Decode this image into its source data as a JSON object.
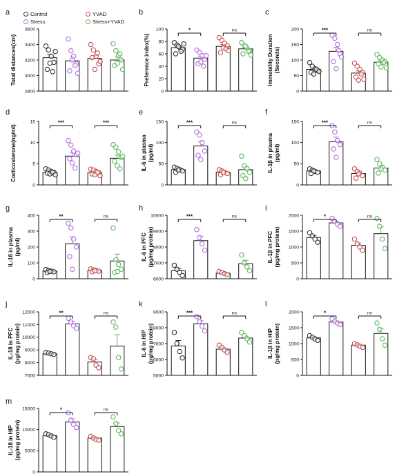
{
  "legend": [
    {
      "label": "Control",
      "color": "#333333"
    },
    {
      "label": "YVAD",
      "color": "#c0504d"
    },
    {
      "label": "Stress",
      "color": "#b46ee0"
    },
    {
      "label": "Stress+YVAD",
      "color": "#5cb85c"
    }
  ],
  "group_colors": [
    "#333333",
    "#b46ee0",
    "#c0504d",
    "#5cb85c"
  ],
  "chart_data": [
    {
      "panel": "a",
      "type": "bar",
      "ylabel": "Total distances(cm)",
      "ylim": [
        2800,
        3600
      ],
      "yticks": [
        2800,
        3000,
        3200,
        3400,
        3600
      ],
      "groups": [
        "Control",
        "Stress",
        "YVAD",
        "Stress+YVAD"
      ],
      "means": [
        3230,
        3190,
        3220,
        3200
      ],
      "points": [
        [
          3380,
          3330,
          3250,
          3170,
          3080,
          3160,
          3050,
          3310
        ],
        [
          3470,
          3320,
          3250,
          3150,
          3060,
          3200,
          3130,
          3030
        ],
        [
          3400,
          3330,
          3250,
          3150,
          3230,
          3080,
          3290,
          3180
        ],
        [
          3410,
          3320,
          3260,
          3200,
          3130,
          3160,
          3280,
          3080
        ]
      ],
      "comparisons": []
    },
    {
      "panel": "b",
      "type": "bar",
      "ylabel": "Preference index(%)",
      "ylim": [
        0,
        100
      ],
      "yticks": [
        0,
        20,
        40,
        60,
        80,
        100
      ],
      "groups": [
        "Control",
        "Stress",
        "YVAD",
        "Stress+YVAD"
      ],
      "means": [
        70,
        53,
        72,
        68
      ],
      "points": [
        [
          78,
          74,
          70,
          67,
          60,
          72,
          64,
          76
        ],
        [
          66,
          62,
          57,
          51,
          44,
          47,
          40,
          57
        ],
        [
          86,
          82,
          77,
          73,
          62,
          70,
          68,
          65
        ],
        [
          78,
          73,
          69,
          65,
          60,
          72,
          64,
          58
        ]
      ],
      "comparisons": [
        {
          "from": 0,
          "to": 1,
          "label": "*"
        },
        {
          "from": 2,
          "to": 3,
          "label": "ns"
        }
      ]
    },
    {
      "panel": "c",
      "type": "bar",
      "ylabel": "Immobility Duration (Seconds)",
      "ylim": [
        0,
        200
      ],
      "yticks": [
        0,
        50,
        100,
        150,
        200
      ],
      "groups": [
        "Control",
        "Stress",
        "YVAD",
        "Stress+YVAD"
      ],
      "means": [
        70,
        128,
        58,
        93
      ],
      "points": [
        [
          92,
          80,
          72,
          66,
          60,
          55,
          70,
          63
        ],
        [
          180,
          170,
          150,
          120,
          95,
          72,
          130,
          110
        ],
        [
          90,
          80,
          70,
          60,
          45,
          35,
          55,
          38
        ],
        [
          118,
          108,
          100,
          95,
          88,
          78,
          92,
          75
        ]
      ],
      "comparisons": [
        {
          "from": 0,
          "to": 1,
          "label": "***"
        },
        {
          "from": 2,
          "to": 3,
          "label": "ns"
        }
      ]
    },
    {
      "panel": "d",
      "type": "bar",
      "ylabel": "Corticosterone(ng/ml)",
      "ylim": [
        0,
        15
      ],
      "yticks": [
        0,
        5,
        10,
        15
      ],
      "groups": [
        "Control",
        "Stress",
        "YVAD",
        "Stress+YVAD"
      ],
      "means": [
        3.0,
        6.8,
        2.9,
        6.3
      ],
      "points": [
        [
          3.8,
          3.5,
          3.2,
          3.0,
          2.8,
          2.6,
          3.0,
          2.4
        ],
        [
          10.5,
          9.4,
          8.0,
          7.1,
          6.2,
          5.2,
          4.0,
          7.5
        ],
        [
          3.7,
          3.5,
          3.2,
          2.9,
          2.6,
          2.4,
          3.0,
          2.2
        ],
        [
          9.5,
          8.9,
          7.8,
          6.5,
          5.6,
          4.5,
          3.8,
          6.8
        ]
      ],
      "comparisons": [
        {
          "from": 0,
          "to": 1,
          "label": "***"
        },
        {
          "from": 2,
          "to": 3,
          "label": "***"
        }
      ]
    },
    {
      "panel": "e",
      "type": "bar",
      "ylabel": "IL-6 in plasma (pg/ml)",
      "ylim": [
        0,
        150
      ],
      "yticks": [
        0,
        50,
        100,
        150
      ],
      "groups": [
        "Control",
        "Stress",
        "YVAD",
        "Stress+YVAD"
      ],
      "means": [
        36,
        92,
        30,
        36
      ],
      "points": [
        [
          42,
          39,
          36,
          33,
          30,
          35
        ],
        [
          125,
          118,
          100,
          80,
          70,
          60
        ],
        [
          36,
          33,
          30,
          27,
          24,
          30
        ],
        [
          68,
          45,
          38,
          30,
          22,
          15
        ]
      ],
      "comparisons": [
        {
          "from": 0,
          "to": 1,
          "label": "***"
        },
        {
          "from": 2,
          "to": 3,
          "label": "ns"
        }
      ]
    },
    {
      "panel": "f",
      "type": "bar",
      "ylabel": "IL-1β in plasma (pg/ml)",
      "ylim": [
        0,
        150
      ],
      "yticks": [
        0,
        50,
        100,
        150
      ],
      "groups": [
        "Control",
        "Stress",
        "YVAD",
        "Stress+YVAD"
      ],
      "means": [
        33,
        102,
        27,
        40
      ],
      "points": [
        [
          38,
          35,
          32,
          30,
          27,
          33
        ],
        [
          140,
          125,
          105,
          95,
          85,
          65
        ],
        [
          38,
          32,
          28,
          22,
          16,
          26
        ],
        [
          60,
          50,
          42,
          35,
          28,
          38
        ]
      ],
      "comparisons": [
        {
          "from": 0,
          "to": 1,
          "label": "***"
        },
        {
          "from": 2,
          "to": 3,
          "label": "ns"
        }
      ]
    },
    {
      "panel": "g",
      "type": "bar",
      "ylabel": "IL-18 in plasma (pg/ml)",
      "ylim": [
        0,
        400
      ],
      "yticks": [
        0,
        100,
        200,
        300,
        400
      ],
      "groups": [
        "Control",
        "Stress",
        "YVAD",
        "Stress+YVAD"
      ],
      "means": [
        48,
        220,
        52,
        112
      ],
      "points": [
        [
          58,
          52,
          48,
          44,
          40,
          46
        ],
        [
          350,
          320,
          250,
          200,
          140,
          60
        ],
        [
          62,
          56,
          52,
          48,
          44,
          50
        ],
        [
          320,
          120,
          90,
          60,
          40,
          45
        ]
      ],
      "comparisons": [
        {
          "from": 0,
          "to": 1,
          "label": "**"
        },
        {
          "from": 2,
          "to": 3,
          "label": "ns"
        }
      ]
    },
    {
      "panel": "h",
      "type": "bar",
      "ylabel": "IL-6 in PFC (pg/mg protein)",
      "ylim": [
        6000,
        10000
      ],
      "yticks": [
        6000,
        7000,
        8000,
        9000,
        10000
      ],
      "groups": [
        "Control",
        "Stress",
        "YVAD",
        "Stress+YVAD"
      ],
      "means": [
        6500,
        8400,
        6350,
        6950
      ],
      "points": [
        [
          6850,
          6600,
          6400,
          6200
        ],
        [
          9100,
          8600,
          8200,
          7800
        ],
        [
          6450,
          6380,
          6320,
          6260
        ],
        [
          7500,
          7000,
          6750,
          6500
        ]
      ],
      "comparisons": [
        {
          "from": 0,
          "to": 1,
          "label": "***"
        },
        {
          "from": 2,
          "to": 3,
          "label": "ns"
        }
      ]
    },
    {
      "panel": "i",
      "type": "bar",
      "ylabel": "IL-1β in PFC (pg/mg protein)",
      "ylim": [
        0,
        2000
      ],
      "yticks": [
        0,
        500,
        1000,
        1500,
        2000
      ],
      "groups": [
        "Control",
        "Stress",
        "YVAD",
        "Stress+YVAD"
      ],
      "means": [
        1300,
        1760,
        1050,
        1420
      ],
      "points": [
        [
          1450,
          1350,
          1250,
          1150
        ],
        [
          1900,
          1800,
          1720,
          1650
        ],
        [
          1250,
          1100,
          1000,
          900
        ],
        [
          1900,
          1650,
          1250,
          950
        ]
      ],
      "comparisons": [
        {
          "from": 0,
          "to": 1,
          "label": "*"
        },
        {
          "from": 2,
          "to": 3,
          "label": "ns"
        }
      ]
    },
    {
      "panel": "j",
      "type": "bar",
      "ylabel": "IL-18 in PFC (pg/mg protein)",
      "ylim": [
        7000,
        12000
      ],
      "yticks": [
        7000,
        8000,
        9000,
        10000,
        11000,
        12000
      ],
      "groups": [
        "Control",
        "Stress",
        "YVAD",
        "Stress+YVAD"
      ],
      "means": [
        8700,
        11050,
        8050,
        9300
      ],
      "points": [
        [
          8800,
          8750,
          8700,
          8650
        ],
        [
          11500,
          11200,
          10900,
          10700
        ],
        [
          8400,
          8300,
          7800,
          7600
        ],
        [
          11200,
          10800,
          8400,
          7500
        ]
      ],
      "comparisons": [
        {
          "from": 0,
          "to": 1,
          "label": "**"
        },
        {
          "from": 2,
          "to": 3,
          "label": "ns"
        }
      ]
    },
    {
      "panel": "k",
      "type": "bar",
      "ylabel": "IL-6 in HIP (pg/mg protein)",
      "ylim": [
        5000,
        9000
      ],
      "yticks": [
        5000,
        6000,
        7000,
        8000,
        9000
      ],
      "groups": [
        "Control",
        "Stress",
        "YVAD",
        "Stress+YVAD"
      ],
      "means": [
        6850,
        8250,
        6650,
        7350
      ],
      "points": [
        [
          7700,
          7000,
          6500,
          6100
        ],
        [
          8700,
          8400,
          8100,
          7800
        ],
        [
          6900,
          6750,
          6600,
          6450
        ],
        [
          7700,
          7500,
          7300,
          7100
        ]
      ],
      "comparisons": [
        {
          "from": 0,
          "to": 1,
          "label": "***"
        },
        {
          "from": 2,
          "to": 3,
          "label": "ns"
        }
      ]
    },
    {
      "panel": "l",
      "type": "bar",
      "ylabel": "IL-1β in HIP (pg/mg protein)",
      "ylim": [
        0,
        2000
      ],
      "yticks": [
        0,
        500,
        1000,
        1500,
        2000
      ],
      "groups": [
        "Control",
        "Stress",
        "YVAD",
        "Stress+YVAD"
      ],
      "means": [
        1180,
        1680,
        950,
        1320
      ],
      "points": [
        [
          1250,
          1200,
          1150,
          1100
        ],
        [
          1780,
          1700,
          1650,
          1600
        ],
        [
          1000,
          960,
          920,
          880
        ],
        [
          1650,
          1450,
          1150,
          950
        ]
      ],
      "comparisons": [
        {
          "from": 0,
          "to": 1,
          "label": "*"
        },
        {
          "from": 2,
          "to": 3,
          "label": "ns"
        }
      ]
    },
    {
      "panel": "m",
      "type": "bar",
      "ylabel": "IL-18 in HIP (pg/mg protein)",
      "ylim": [
        0,
        15000
      ],
      "yticks": [
        0,
        5000,
        10000,
        15000
      ],
      "groups": [
        "Control",
        "Stress",
        "YVAD",
        "Stress+YVAD"
      ],
      "means": [
        8600,
        11800,
        8000,
        10700
      ],
      "points": [
        [
          9000,
          8800,
          8500,
          8200
        ],
        [
          14000,
          12200,
          11200,
          10500
        ],
        [
          8400,
          8000,
          7700,
          7500
        ],
        [
          13000,
          11500,
          9800,
          9000
        ]
      ],
      "comparisons": [
        {
          "from": 0,
          "to": 1,
          "label": "*"
        },
        {
          "from": 2,
          "to": 3,
          "label": "ns"
        }
      ]
    }
  ]
}
